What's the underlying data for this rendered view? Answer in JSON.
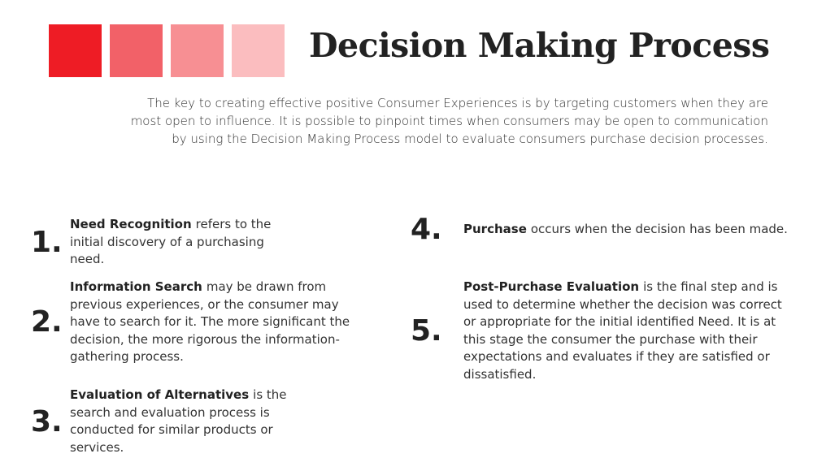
{
  "header": {
    "title": "Decision Making Process",
    "intro": "The key to creating effective positive Consumer Experiences is by targeting customers when they are most open to influence.  It is possible to pinpoint times when consumers may be open to communication by using the Decision Making Process model to evaluate consumers purchase decision processes."
  },
  "steps": [
    {
      "number": "1.",
      "term": "Need Recognition",
      "text": "refers to the initial discovery of a purchasing need."
    },
    {
      "number": "2.",
      "term": "Information Search",
      "text": "may be drawn from previous experiences, or the consumer may have to search for it. The more significant the decision, the more rigorous the information-gathering process."
    },
    {
      "number": "3.",
      "term": "Evaluation of Alternatives",
      "text": "is the search and evaluation process is conducted for similar products or services."
    },
    {
      "number": "4.",
      "term": "Purchase",
      "text": "occurs when the decision has been made."
    },
    {
      "number": "5.",
      "term": "Post-Purchase Evaluation",
      "text": "is the final step and is used to determine whether the decision was correct or appropriate for the initial identified Need. It is at this stage the consumer the purchase with their expectations and evaluates if they are satisfied or dissatisfied."
    }
  ]
}
